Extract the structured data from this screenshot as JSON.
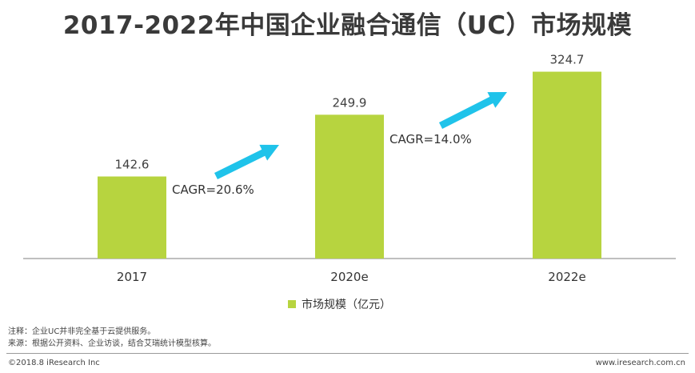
{
  "chart_data": {
    "type": "bar",
    "title": "2017-2022年中国企业融合通信（UC）市场规模",
    "categories": [
      "2017",
      "2020e",
      "2022e"
    ],
    "series": [
      {
        "name": "市场规模（亿元）",
        "values": [
          142.6,
          249.9,
          324.7
        ]
      }
    ],
    "value_labels": [
      "142.6",
      "249.9",
      "324.7"
    ],
    "ylim": [
      0,
      370
    ],
    "grid": false,
    "legend_position": "bottom",
    "annotations": [
      {
        "text": "CAGR=20.6%",
        "between": [
          "2017",
          "2020e"
        ]
      },
      {
        "text": "CAGR=14.0%",
        "between": [
          "2020e",
          "2022e"
        ]
      }
    ]
  },
  "colors": {
    "bar": "#b7d43f",
    "arrow": "#1fc3ea",
    "axis": "#7f7f7f"
  },
  "footer": {
    "note": "注释：企业UC并非完全基于云提供服务。",
    "source": "来源：根据公开资料、企业访谈，结合艾瑞统计模型核算。",
    "copyright": "©2018.8 iResearch Inc",
    "website": "www.iresearch.com.cn"
  }
}
